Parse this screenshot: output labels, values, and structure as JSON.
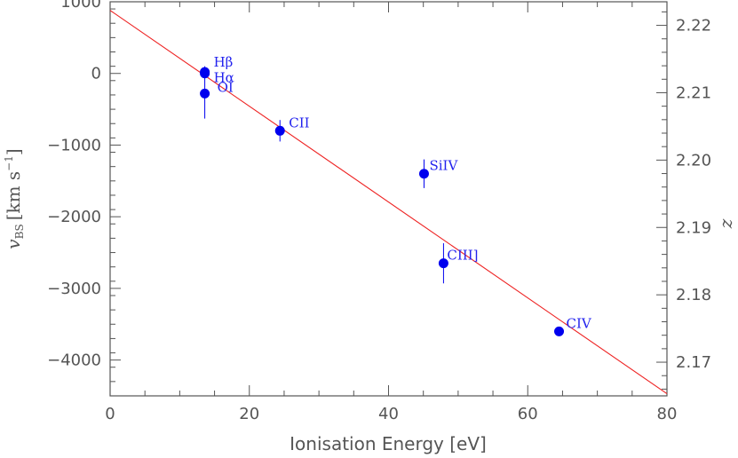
{
  "chart_data": {
    "type": "scatter",
    "xlabel": "Ionisation Energy [eV]",
    "ylabel": {
      "symbol": "v",
      "subscript": "BS",
      "units": "[km s",
      "exponent": "−1",
      "close": "]"
    },
    "y2label": "z",
    "xlim": [
      0,
      80
    ],
    "ylim": [
      -4500,
      1000
    ],
    "y2lim": [
      2.165,
      2.2235
    ],
    "x_ticks": [
      0,
      20,
      40,
      60,
      80
    ],
    "y_ticks": [
      1000,
      0,
      -1000,
      -2000,
      -3000,
      -4000
    ],
    "y_tick_labels": [
      "1000",
      "0",
      "−1000",
      "−2000",
      "−3000",
      "−4000"
    ],
    "y2_ticks": [
      2.17,
      2.18,
      2.19,
      2.2,
      2.21,
      2.22
    ],
    "y2_tick_labels": [
      "2.17",
      "2.18",
      "2.19",
      "2.20",
      "2.21",
      "2.22"
    ],
    "grid": false,
    "points": [
      {
        "label": "Hβ",
        "x": 13.6,
        "y": 20,
        "err": 80
      },
      {
        "label": "Hα",
        "x": 13.6,
        "y": 0,
        "err": 60
      },
      {
        "label": "OI",
        "x": 13.6,
        "y": -280,
        "err": 350
      },
      {
        "label": "CII",
        "x": 24.4,
        "y": -800,
        "err": 150
      },
      {
        "label": "SiIV",
        "x": 45.1,
        "y": -1400,
        "err": 200
      },
      {
        "label": "CIII]",
        "x": 47.9,
        "y": -2650,
        "err": 280
      },
      {
        "label": "CIV",
        "x": 64.5,
        "y": -3600,
        "err": 50
      }
    ],
    "fit_line": {
      "x": [
        0,
        80
      ],
      "y": [
        880,
        -4470
      ]
    },
    "colors": {
      "points": "#0000ee",
      "labels": "#2222ee",
      "line": "#ee2222",
      "axes": "#555555"
    }
  }
}
